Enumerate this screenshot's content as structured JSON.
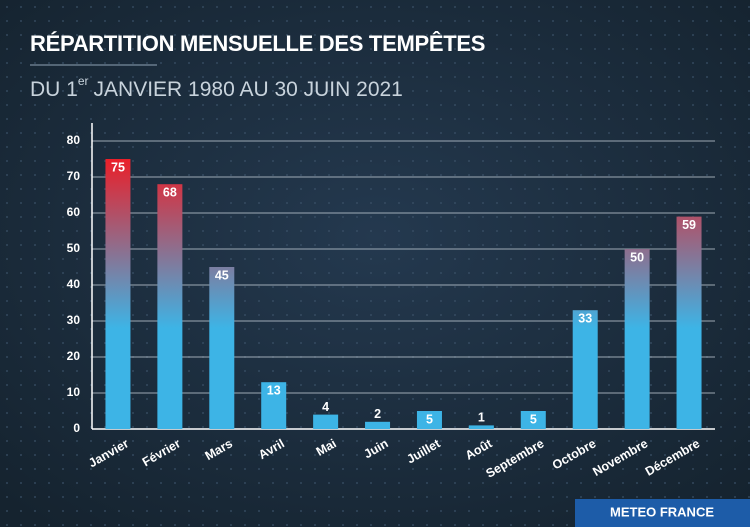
{
  "chart_data": {
    "type": "bar",
    "title": "RÉPARTITION MENSUELLE DES TEMPÊTES",
    "subtitle": [
      "DU 1",
      "er",
      "JANVIER 1980 AU 30 JUIN 2021"
    ],
    "categories": [
      "Janvier",
      "Février",
      "Mars",
      "Avril",
      "Mai",
      "Juin",
      "Juillet",
      "Août",
      "Septembre",
      "Octobre",
      "Novembre",
      "Décembre"
    ],
    "values": [
      75,
      68,
      45,
      13,
      4,
      2,
      5,
      1,
      5,
      33,
      50,
      59
    ],
    "color_low": "#3db4e6",
    "color_high": "#ee1c25",
    "ylim": [
      0,
      85
    ],
    "yticks": [
      0,
      10,
      20,
      30,
      40,
      50,
      60,
      70,
      80
    ],
    "grid": true,
    "logo": "METEO FRANCE"
  }
}
